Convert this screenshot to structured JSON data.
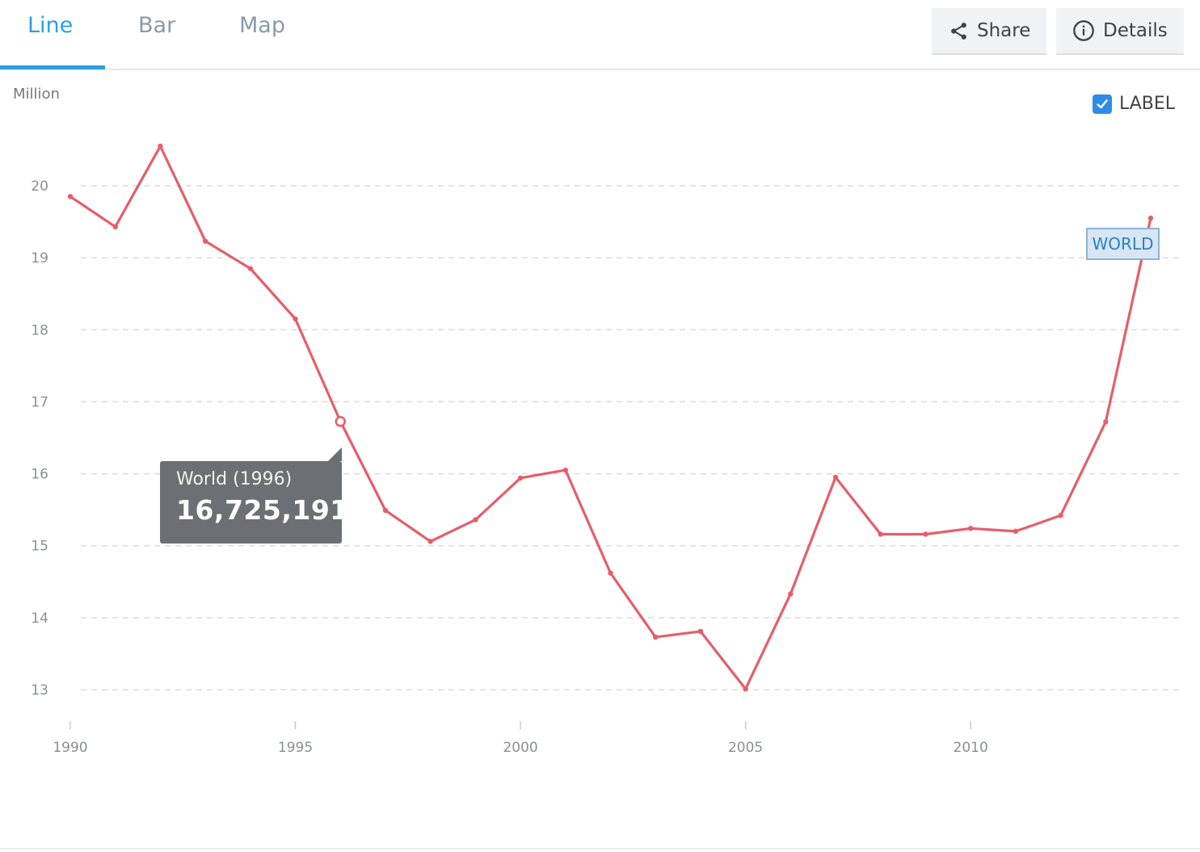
{
  "tabs": [
    {
      "label": "Line",
      "active": true
    },
    {
      "label": "Bar",
      "active": false
    },
    {
      "label": "Map",
      "active": false
    }
  ],
  "toolbar": {
    "share_label": "Share",
    "details_label": "Details"
  },
  "label_toggle": {
    "label": "LABEL",
    "checked": true
  },
  "tooltip": {
    "title": "World (1996)",
    "value": "16,725,191"
  },
  "colors": {
    "series": "#e55e6a",
    "accent": "#2d9fe3",
    "grid": "#dcdcdc"
  },
  "chart_data": {
    "type": "line",
    "ylabel": "Million",
    "ylim": [
      13,
      20.5
    ],
    "yticks": [
      13,
      14,
      15,
      16,
      17,
      18,
      19,
      20
    ],
    "xlim": [
      1990,
      2014
    ],
    "xticks": [
      1990,
      1995,
      2000,
      2005,
      2010
    ],
    "grid": true,
    "highlight": {
      "x": 1996,
      "y": 16.725191
    },
    "series": [
      {
        "name": "WORLD",
        "x": [
          1990,
          1991,
          1992,
          1993,
          1994,
          1995,
          1996,
          1997,
          1998,
          1999,
          2000,
          2001,
          2002,
          2003,
          2004,
          2005,
          2006,
          2007,
          2008,
          2009,
          2010,
          2011,
          2012,
          2013,
          2014
        ],
        "y": [
          19.85,
          19.43,
          20.55,
          19.23,
          18.85,
          18.15,
          16.725191,
          15.49,
          15.06,
          15.36,
          15.94,
          16.05,
          14.62,
          13.73,
          13.81,
          13.01,
          14.33,
          15.95,
          15.16,
          15.16,
          15.24,
          15.2,
          15.42,
          16.72,
          19.55
        ]
      }
    ]
  }
}
